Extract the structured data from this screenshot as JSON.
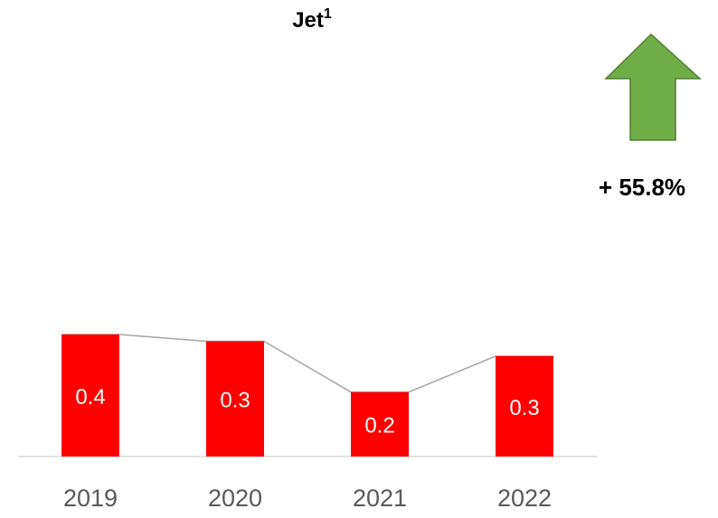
{
  "chart_data": {
    "type": "bar",
    "title": "Jet",
    "title_footnote": "1",
    "categories": [
      "2019",
      "2020",
      "2021",
      "2022"
    ],
    "values": [
      0.36,
      0.34,
      0.19,
      0.296
    ],
    "value_labels": [
      "0.4",
      "0.3",
      "0.2",
      "0.3"
    ],
    "color": "#ff0000",
    "line_color": "#a6a6a6",
    "annotation": "+ 55.8%",
    "arrow_color": "#70ad47"
  }
}
